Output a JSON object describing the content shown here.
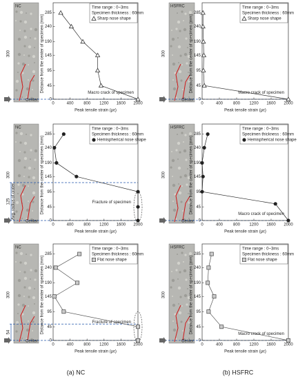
{
  "captions": [
    "(a) NC",
    "(b) HSFRC"
  ],
  "chart_data": [
    {
      "type": "line",
      "specimen": "NC",
      "ylabel": "Distance from the center of specimen (mm)",
      "xlabel": "Peak tensile strain (με)",
      "info": [
        "Time range : 0~3ms",
        "Specimen thickness : 60mm"
      ],
      "length_label": "300",
      "center_label": "Center",
      "annotation": "Macro crack of specimen",
      "xlim": [
        0,
        2000
      ],
      "ylim": [
        0,
        300
      ],
      "xticks": [
        0,
        400,
        800,
        1200,
        1600,
        2000
      ],
      "yticks": [
        0,
        45,
        95,
        145,
        190,
        240,
        285
      ],
      "series": [
        {
          "name": "Sharp nose shape",
          "color": "#333333",
          "marker": "triangle",
          "x": [
            180,
            430,
            700,
            1050,
            1050,
            1130,
            2000
          ],
          "values": [
            285,
            240,
            190,
            145,
            95,
            45,
            0
          ]
        }
      ]
    },
    {
      "type": "line",
      "specimen": "HSFRC",
      "ylabel": "Distance from the center of specimen (mm)",
      "xlabel": "Peak tensile strain (με)",
      "info": [
        "Time range : 0~3ms",
        "Specimen thickness : 60mm"
      ],
      "length_label": "300",
      "center_label": "Center",
      "annotation": "Macro crack of specimen",
      "xlim": [
        0,
        2000
      ],
      "ylim": [
        0,
        300
      ],
      "xticks": [
        0,
        400,
        800,
        1200,
        1600,
        2000
      ],
      "yticks": [
        0,
        45,
        95,
        145,
        190,
        240,
        285
      ],
      "series": [
        {
          "name": "Sharp nose shape",
          "color": "#333333",
          "marker": "triangle",
          "x": [
            20,
            20,
            30,
            40,
            30,
            50,
            2000
          ],
          "values": [
            285,
            240,
            190,
            145,
            95,
            45,
            0
          ]
        }
      ]
    },
    {
      "type": "line",
      "specimen": "NC",
      "ylabel": "Distance from the center of specimen (mm)",
      "xlabel": "Peak tensile strain (με)",
      "info": [
        "Time range : 0~3ms",
        "Specimen thickness : 60mm"
      ],
      "length_label": "300",
      "center_label": "Center",
      "crater_value": "125",
      "crater_label": "Avg. radius of crater",
      "annotation": "Fracture of specimen",
      "xlim": [
        0,
        2000
      ],
      "ylim": [
        0,
        300
      ],
      "xticks": [
        0,
        400,
        800,
        1200,
        1600,
        2000
      ],
      "yticks": [
        0,
        45,
        95,
        145,
        190,
        240,
        285
      ],
      "series": [
        {
          "name": "Hemispherical nose shape",
          "color": "#222222",
          "marker": "circle",
          "x": [
            250,
            30,
            80,
            550,
            2000,
            2000,
            2000
          ],
          "values": [
            285,
            240,
            190,
            145,
            95,
            45,
            0
          ]
        }
      ]
    },
    {
      "type": "line",
      "specimen": "HSFRC",
      "ylabel": "Distance from the center of specimen (mm)",
      "xlabel": "Peak tensile strain (με)",
      "info": [
        "Time range : 0~3ms",
        "Specimen thickness : 60mm"
      ],
      "length_label": "300",
      "center_label": "Center",
      "annotation": "Macro crack of specimen",
      "xlim": [
        0,
        2000
      ],
      "ylim": [
        0,
        300
      ],
      "xticks": [
        0,
        400,
        800,
        1200,
        1600,
        2000
      ],
      "yticks": [
        0,
        45,
        95,
        145,
        190,
        240,
        285
      ],
      "series": [
        {
          "name": "Hemispherical nose shape",
          "color": "#222222",
          "marker": "circle",
          "x": [
            130,
            50,
            0,
            20,
            0,
            1700,
            2000
          ],
          "values": [
            285,
            240,
            190,
            145,
            95,
            55,
            0
          ]
        }
      ]
    },
    {
      "type": "line",
      "specimen": "NC",
      "ylabel": "Distance from the center of specimen (mm)",
      "xlabel": "Peak tensile strain (με)",
      "info": [
        "Time range : 0~3ms",
        "Specimen thickness : 60mm"
      ],
      "length_label": "300",
      "center_label": "Center",
      "crater_value": "54",
      "annotation": "Fracture of specimen",
      "xlim": [
        0,
        2000
      ],
      "ylim": [
        0,
        300
      ],
      "xticks": [
        0,
        400,
        800,
        1200,
        1600,
        2000
      ],
      "yticks": [
        0,
        45,
        95,
        145,
        190,
        240,
        285
      ],
      "series": [
        {
          "name": "Flat nose shape",
          "color": "#555555",
          "marker": "square",
          "x": [
            620,
            60,
            570,
            30,
            250,
            2000,
            2000
          ],
          "values": [
            285,
            240,
            190,
            145,
            95,
            45,
            0
          ]
        }
      ]
    },
    {
      "type": "line",
      "specimen": "HSFRC",
      "ylabel": "Distance from the center of specimen (mm)",
      "xlabel": "Peak tensile strain (με)",
      "info": [
        "Time range : 0~3ms",
        "Specimen thickness : 60mm"
      ],
      "length_label": "300",
      "center_label": "Center",
      "annotation": "Macro crack of specimen",
      "xlim": [
        0,
        2000
      ],
      "ylim": [
        0,
        300
      ],
      "xticks": [
        0,
        400,
        800,
        1200,
        1600,
        2000
      ],
      "yticks": [
        0,
        45,
        95,
        145,
        190,
        240,
        285
      ],
      "series": [
        {
          "name": "Flat nose shape",
          "color": "#555555",
          "marker": "square",
          "x": [
            220,
            150,
            130,
            280,
            150,
            450,
            2000
          ],
          "values": [
            285,
            240,
            190,
            145,
            95,
            45,
            0
          ]
        }
      ]
    }
  ]
}
